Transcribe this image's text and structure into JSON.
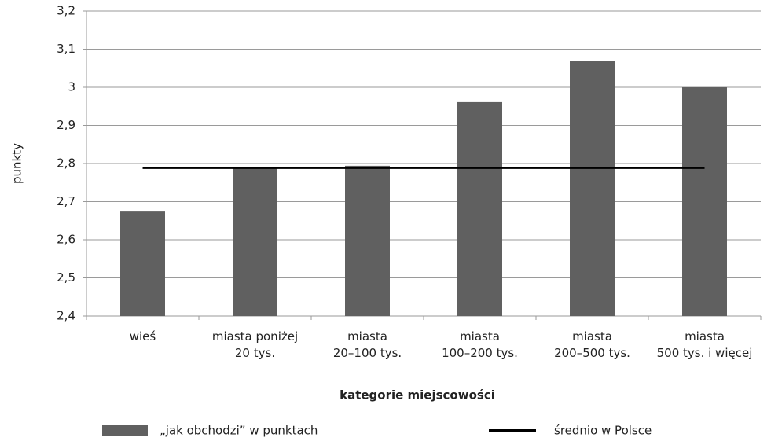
{
  "chart_data": {
    "type": "bar",
    "categories": [
      "wieś",
      "miasta poniżej\n20 tys.",
      "miasta\n20–100 tys.",
      "miasta\n100–200 tys.",
      "miasta\n200–500 tys.",
      "miasta\n500 tys. i więcej"
    ],
    "series": [
      {
        "name": "„jak obchodzi” w punktach",
        "type": "bar",
        "color": "#606060",
        "values": [
          2.674,
          2.79,
          2.794,
          2.961,
          3.07,
          3.0
        ]
      },
      {
        "name": "średnio w Polsce",
        "type": "line",
        "color": "#000000",
        "values": [
          2.788,
          2.788,
          2.788,
          2.788,
          2.788,
          2.788
        ]
      }
    ],
    "ylabel": "punkty",
    "xlabel": "kategorie miejscowości",
    "ylim": [
      2.4,
      3.2
    ],
    "yticks": [
      {
        "value": 2.4,
        "label": "2,4"
      },
      {
        "value": 2.5,
        "label": "2,5"
      },
      {
        "value": 2.6,
        "label": "2,6"
      },
      {
        "value": 2.7,
        "label": "2,7"
      },
      {
        "value": 2.8,
        "label": "2,8"
      },
      {
        "value": 2.9,
        "label": "2,9"
      },
      3,
      {
        "value": 3.1,
        "label": "3,1"
      },
      {
        "value": 3.2,
        "label": "3,2"
      }
    ],
    "grid": true,
    "legend": "bottom"
  }
}
